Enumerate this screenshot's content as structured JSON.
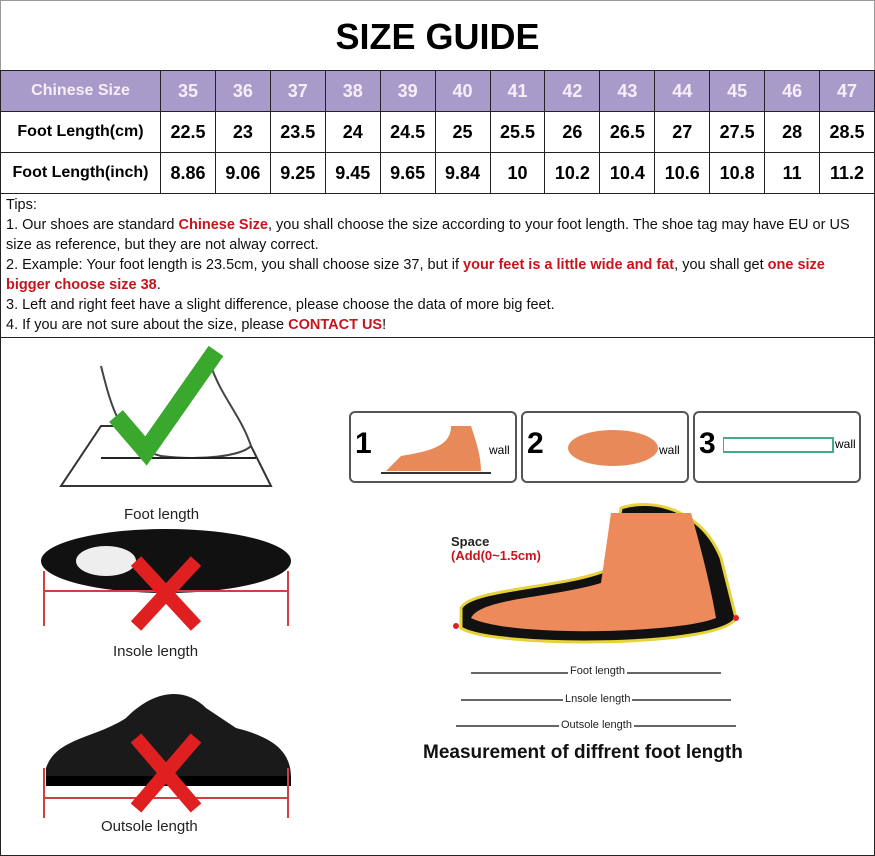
{
  "title": "SIZE GUIDE",
  "table": {
    "header_label": "Chinese Size",
    "sizes": [
      "35",
      "36",
      "37",
      "38",
      "39",
      "40",
      "41",
      "42",
      "43",
      "44",
      "45",
      "46",
      "47"
    ],
    "rows": [
      {
        "label": "Foot Length(cm)",
        "values": [
          "22.5",
          "23",
          "23.5",
          "24",
          "24.5",
          "25",
          "25.5",
          "26",
          "26.5",
          "27",
          "27.5",
          "28",
          "28.5"
        ]
      },
      {
        "label": "Foot Length(inch)",
        "values": [
          "8.86",
          "9.06",
          "9.25",
          "9.45",
          "9.65",
          "9.84",
          "10",
          "10.2",
          "10.4",
          "10.6",
          "10.8",
          "11",
          "11.2"
        ]
      }
    ],
    "header_color": "#a99bc9"
  },
  "tips": {
    "heading": "Tips:",
    "l1a": "1. Our shoes are standard ",
    "l1b": "Chinese Size",
    "l1c": ", you shall choose the size according to your foot length. The shoe tag may have EU or US size as reference, but they are not alway correct.",
    "l2a": "2. Example: Your foot length is 23.5cm, you shall choose size 37, but if ",
    "l2b": "your feet is a little wide and fat",
    "l2c": ", you shall get ",
    "l2d": "one size bigger choose size 38",
    "l2e": ".",
    "l3": "3. Left and right feet have a slight difference, please choose the data of more big feet.",
    "l4a": "4. If you are not sure about the size, please ",
    "l4b": "CONTACT US",
    "l4c": "!",
    "highlight_color": "#c8141c"
  },
  "illustrations": {
    "foot_length": "Foot length",
    "insole_length": "Insole length",
    "outsole_length": "Outsole length",
    "steps": [
      {
        "num": "1",
        "wall": "wall"
      },
      {
        "num": "2",
        "wall": "wall"
      },
      {
        "num": "3",
        "wall": "wall"
      }
    ],
    "space": "Space",
    "add": "(Add(0~1.5cm)",
    "diagram_foot": "Foot length",
    "diagram_insole": "Lnsole length",
    "diagram_outsole": "Outsole length",
    "caption": "Measurement of diffrent foot length"
  }
}
